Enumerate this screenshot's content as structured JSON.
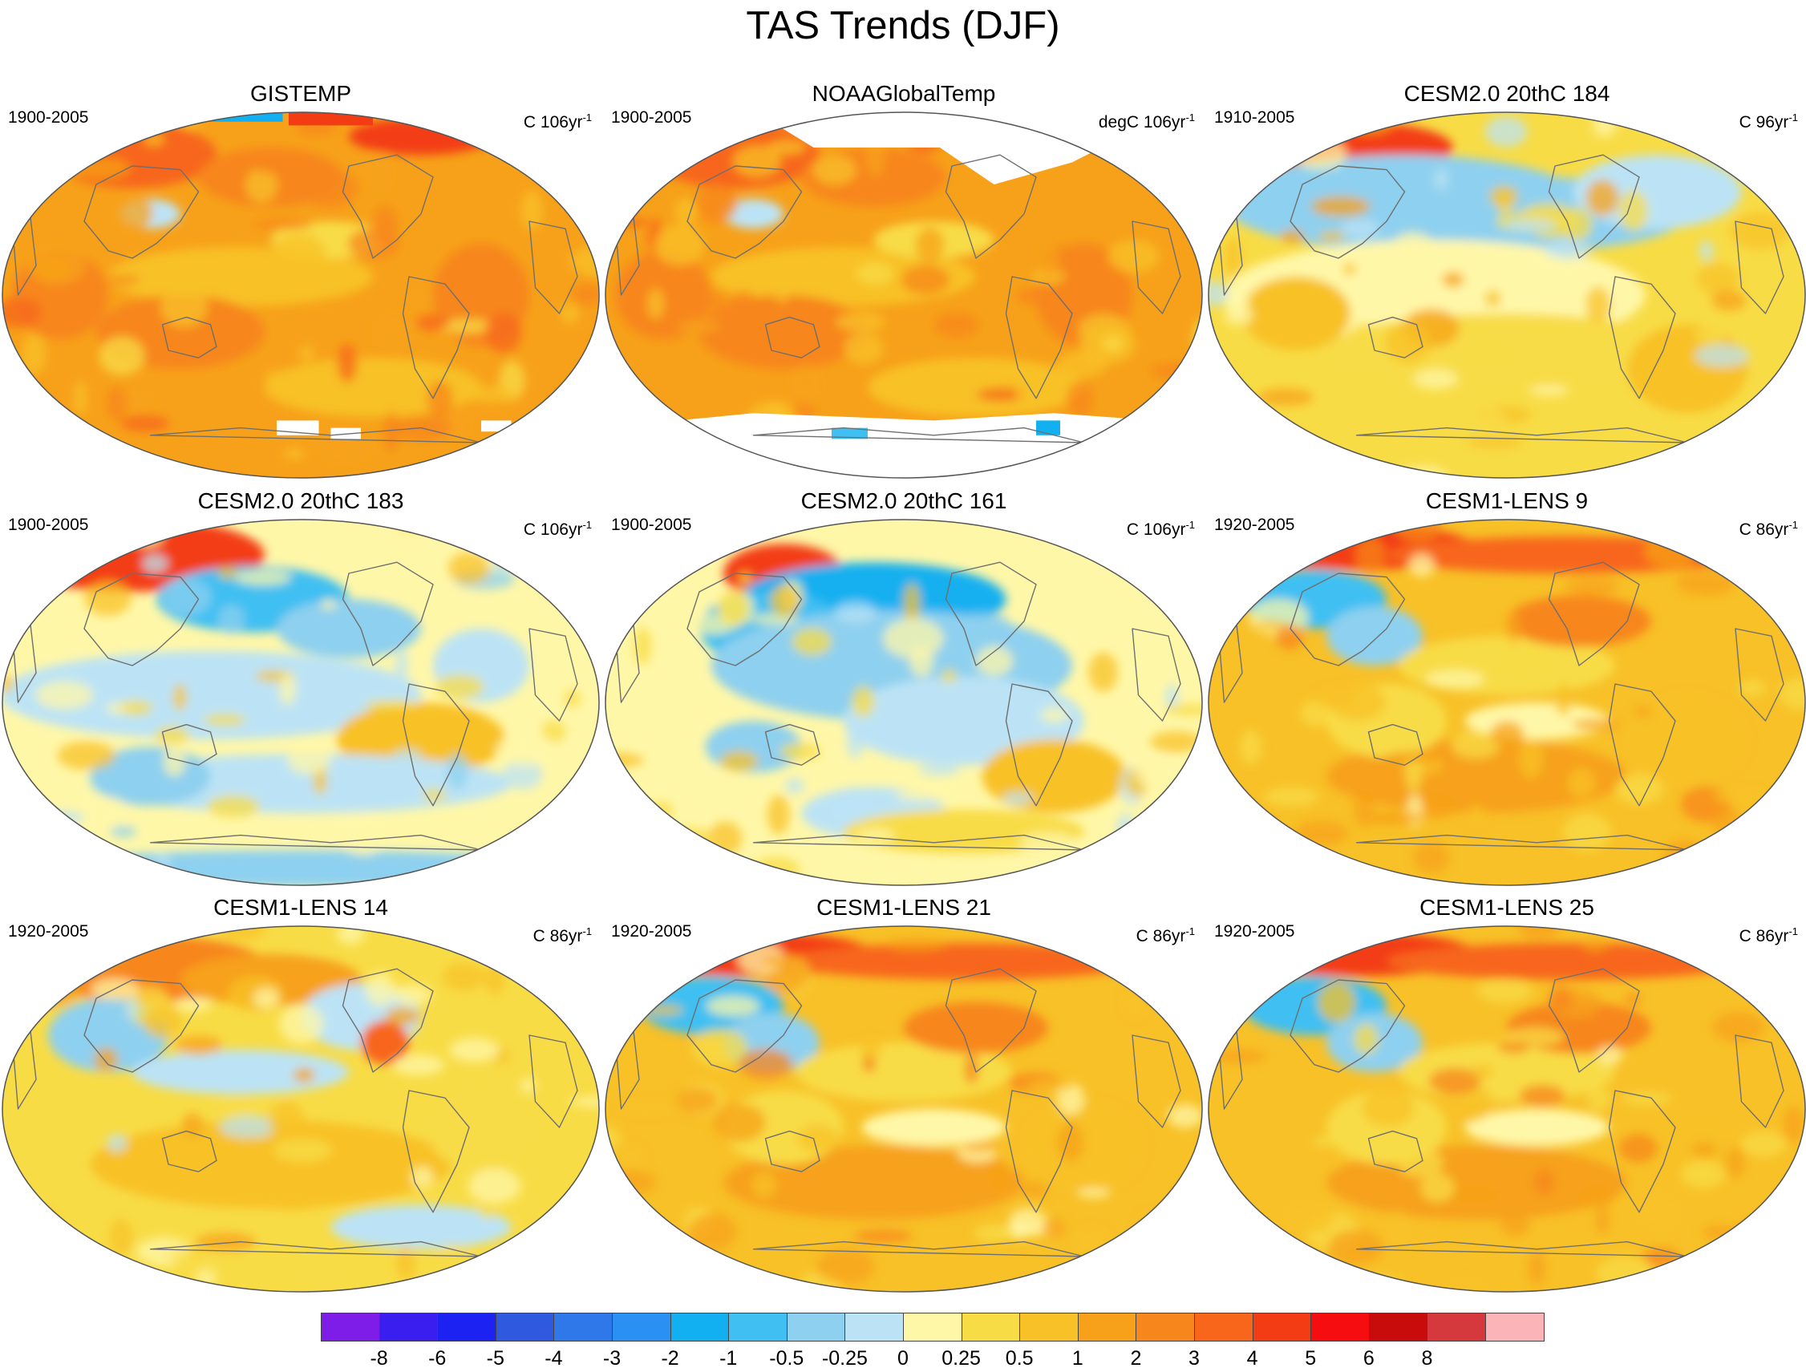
{
  "title": "TAS Trends (DJF)",
  "panels": [
    {
      "title": "GISTEMP",
      "period": "1900-2005",
      "units": "C 106yr",
      "units_main": "C 106yr",
      "units_sup": "-1",
      "style": "obs_warm",
      "missing": "north_south"
    },
    {
      "title": "NOAAGlobalTemp",
      "period": "1900-2005",
      "units": "degC 106yr",
      "units_main": "degC 106yr",
      "units_sup": "-1",
      "style": "obs_warm",
      "missing": "poles_large"
    },
    {
      "title": "CESM2.0 20thC 184",
      "period": "1910-2005",
      "units": "C 96yr",
      "units_main": "C 96yr",
      "units_sup": "-1",
      "style": "cool_north"
    },
    {
      "title": "CESM2.0 20thC 183",
      "period": "1900-2005",
      "units": "C 106yr",
      "units_main": "C 106yr",
      "units_sup": "-1",
      "style": "cool_pacific"
    },
    {
      "title": "CESM2.0 20thC 161",
      "period": "1900-2005",
      "units": "C 106yr",
      "units_main": "C 106yr",
      "units_sup": "-1",
      "style": "cool_strong"
    },
    {
      "title": "CESM1-LENS 9",
      "period": "1920-2005",
      "units": "C 86yr",
      "units_main": "C 86yr",
      "units_sup": "-1",
      "style": "lens"
    },
    {
      "title": "CESM1-LENS 14",
      "period": "1920-2005",
      "units": "C 86yr",
      "units_main": "C 86yr",
      "units_sup": "-1",
      "style": "lens_mild"
    },
    {
      "title": "CESM1-LENS 21",
      "period": "1920-2005",
      "units": "C 86yr",
      "units_main": "C 86yr",
      "units_sup": "-1",
      "style": "lens"
    },
    {
      "title": "CESM1-LENS 25",
      "period": "1920-2005",
      "units": "C 86yr",
      "units_main": "C 86yr",
      "units_sup": "-1",
      "style": "lens"
    }
  ],
  "colorbar": {
    "colors": [
      "#7f1de8",
      "#3a1ef0",
      "#1c22f2",
      "#2f5ae0",
      "#2f78ea",
      "#2a90f2",
      "#12b0f0",
      "#3fbff2",
      "#8ed0ef",
      "#bce3f5",
      "#fff7a8",
      "#f8dc46",
      "#f8c128",
      "#f7a11a",
      "#f7861c",
      "#f7661a",
      "#f33c13",
      "#f50d10",
      "#c80b0b",
      "#d6393d",
      "#fbb4b8"
    ],
    "labels": [
      "-8",
      "-6",
      "-5",
      "-4",
      "-3",
      "-2",
      "-1",
      "-0.5",
      "-0.25",
      "0",
      "0.25",
      "0.5",
      "1",
      "2",
      "3",
      "4",
      "5",
      "6",
      "8"
    ]
  }
}
